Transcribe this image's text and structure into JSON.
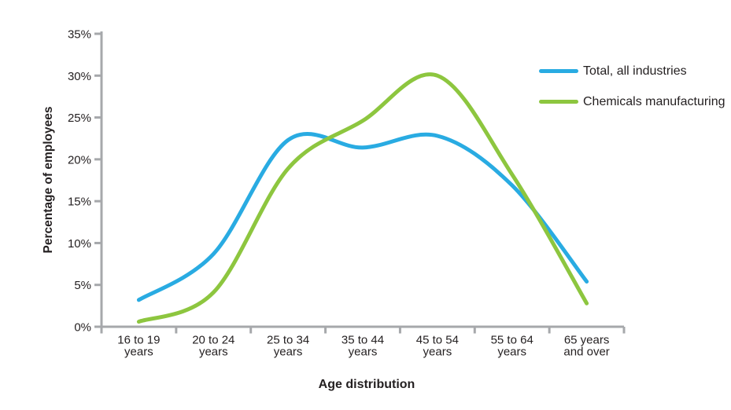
{
  "chart_data": {
    "type": "line",
    "title": "",
    "xlabel": "Age distribution",
    "ylabel": "Percentage of employees",
    "categories": [
      "16 to 19 years",
      "20 to 24 years",
      "25 to 34 years",
      "35 to 44 years",
      "45 to 54 years",
      "55 to 64 years",
      "65 years and over"
    ],
    "category_lines": [
      [
        "16 to 19",
        "years"
      ],
      [
        "20 to 24",
        "years"
      ],
      [
        "25 to 34",
        "years"
      ],
      [
        "35 to 44",
        "years"
      ],
      [
        "45 to 54",
        "years"
      ],
      [
        "55 to 64",
        "years"
      ],
      [
        "65 years",
        "and over"
      ]
    ],
    "ytick_labels": [
      "0%",
      "5%",
      "10%",
      "15%",
      "20%",
      "25%",
      "30%",
      "35%"
    ],
    "ytick_values": [
      0,
      5,
      10,
      15,
      20,
      25,
      30,
      35
    ],
    "ylim": [
      0,
      35
    ],
    "grid": false,
    "curve": "smooth",
    "legend_position": "top-right",
    "series": [
      {
        "name": "Total, all industries",
        "color": "#29abe2",
        "values": [
          3.2,
          8.7,
          22.3,
          21.4,
          22.8,
          16.9,
          5.4
        ]
      },
      {
        "name": "Chemicals manufacturing",
        "color": "#8dc63f",
        "values": [
          0.6,
          4.1,
          18.9,
          24.6,
          30.0,
          18.2,
          2.8
        ]
      }
    ]
  },
  "colors": {
    "axis": "#a6a8ab",
    "text": "#231f20",
    "background": "#ffffff"
  }
}
